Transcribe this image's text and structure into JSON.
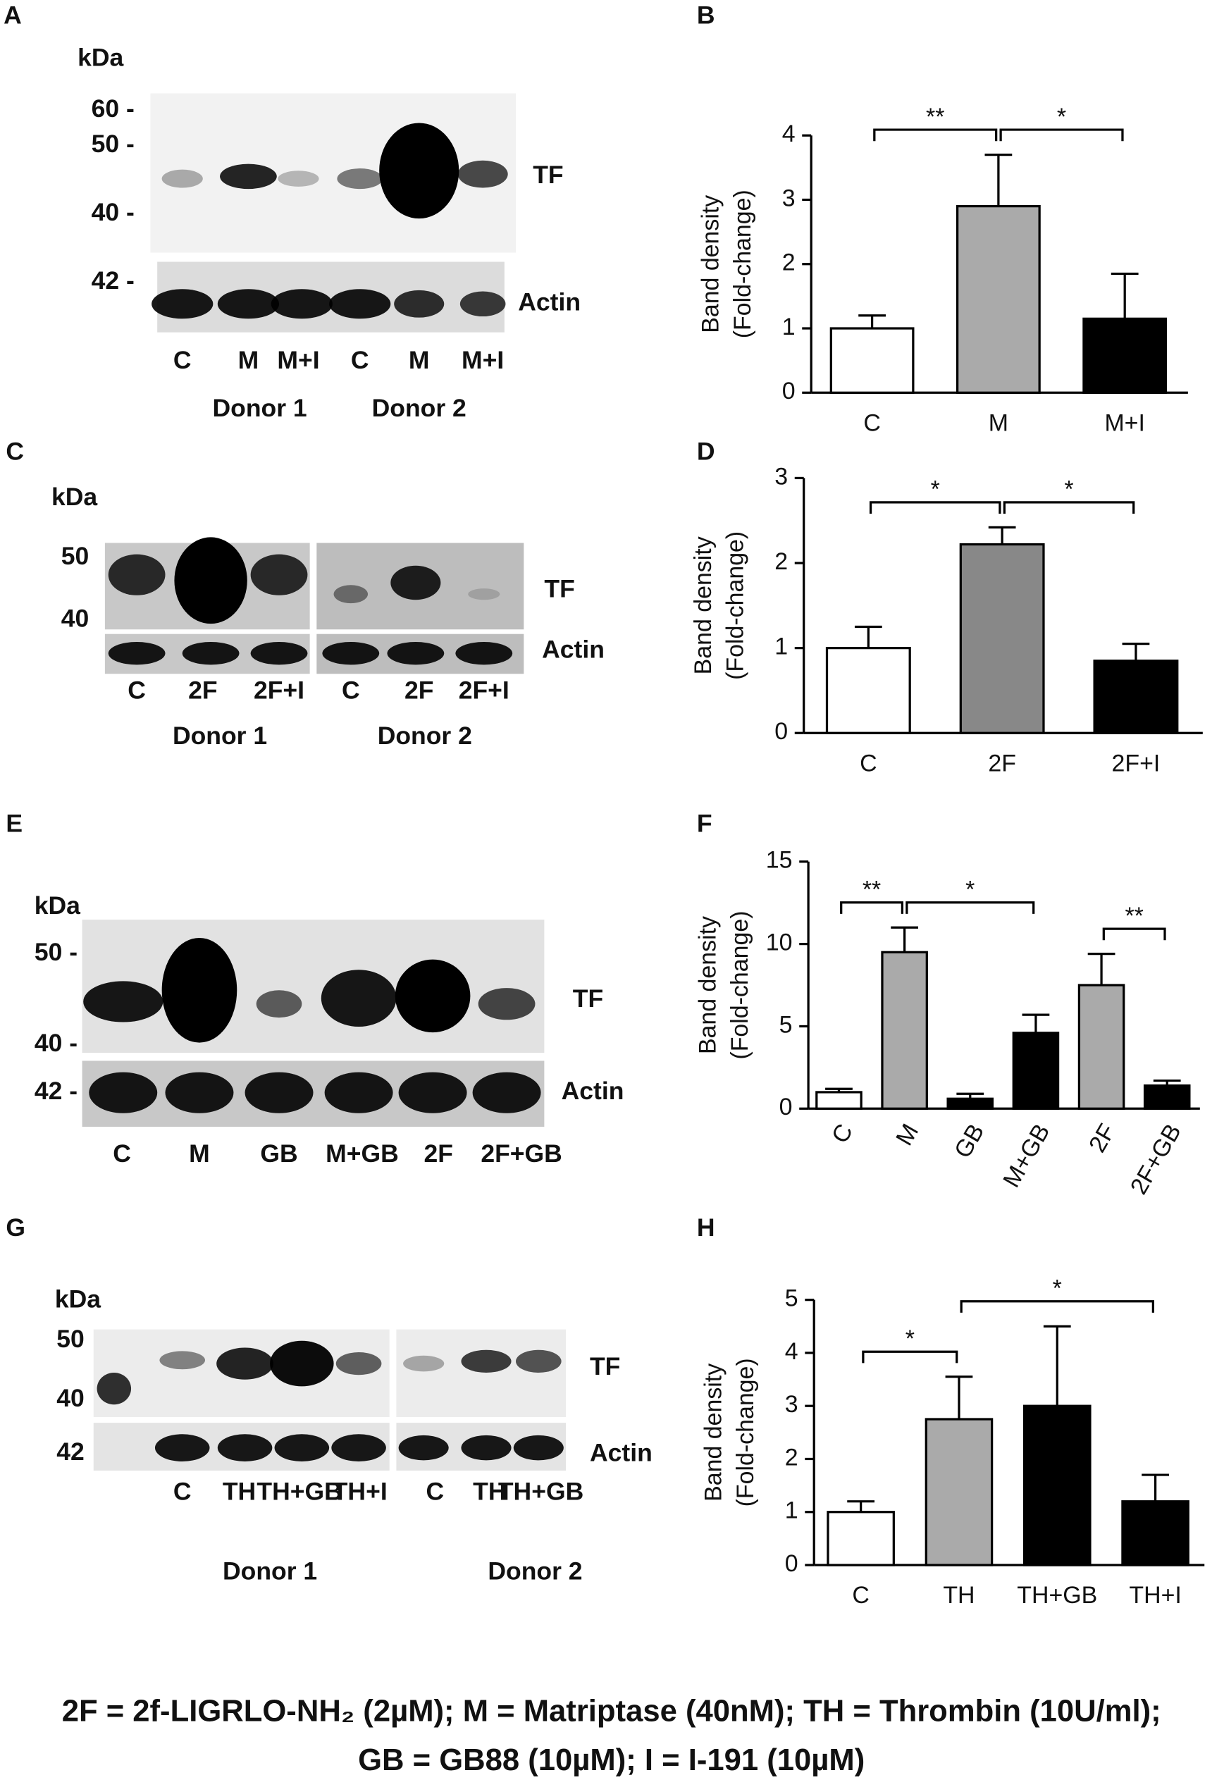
{
  "panel_labels": [
    "A",
    "B",
    "C",
    "D",
    "E",
    "F",
    "G",
    "H"
  ],
  "blots": [
    {
      "kda": "kDa",
      "markers": [
        "60 -",
        "50 -",
        "40 -",
        "42 -"
      ],
      "tf": "TF",
      "actin": "Actin",
      "lanes": [
        "C",
        "M",
        "M+I",
        "C",
        "M",
        "M+I"
      ],
      "donors": [
        "Donor 1",
        "Donor 2"
      ]
    },
    {
      "kda": "kDa",
      "markers": [
        "50",
        "40"
      ],
      "tf": "TF",
      "actin": "Actin",
      "lanes": [
        "C",
        "2F",
        "2F+I",
        "C",
        "2F",
        "2F+I"
      ],
      "donors": [
        "Donor 1",
        "Donor 2"
      ]
    },
    {
      "kda": "kDa",
      "markers": [
        "50 -",
        "40 -",
        "42 -"
      ],
      "tf": "TF",
      "actin": "Actin",
      "lanes": [
        "C",
        "M",
        "GB",
        "M+GB",
        "2F",
        "2F+GB"
      ]
    },
    {
      "kda": "kDa",
      "markers": [
        "50",
        "40",
        "42"
      ],
      "tf": "TF",
      "actin": "Actin",
      "lanes": [
        "C",
        "TH",
        "TH+GB",
        "TH+I",
        "C",
        "TH",
        "TH+GB"
      ],
      "donors": [
        "Donor 1",
        "Donor 2"
      ]
    }
  ],
  "chart_data": [
    {
      "type": "bar",
      "ylabel": [
        "Band density",
        "(Fold-change)"
      ],
      "categories": [
        "C",
        "M",
        "M+I"
      ],
      "values": [
        1,
        2.9,
        1.15
      ],
      "errors": [
        0.2,
        0.8,
        0.7
      ],
      "colors": [
        "#ffffff",
        "#aaaaaa",
        "#000000"
      ],
      "ylim": [
        0,
        4
      ],
      "yticks": [
        0,
        1,
        2,
        3,
        4
      ],
      "significance": [
        {
          "between": [
            "C",
            "M"
          ],
          "label": "**"
        },
        {
          "between": [
            "M",
            "M+I"
          ],
          "label": "*"
        }
      ]
    },
    {
      "type": "bar",
      "ylabel": [
        "Band density",
        "(Fold-change)"
      ],
      "categories": [
        "C",
        "2F",
        "2F+I"
      ],
      "values": [
        1,
        2.22,
        0.85
      ],
      "errors": [
        0.25,
        0.2,
        0.2
      ],
      "colors": [
        "#ffffff",
        "#888888",
        "#000000"
      ],
      "ylim": [
        0,
        3
      ],
      "yticks": [
        0,
        1,
        2,
        3
      ],
      "significance": [
        {
          "between": [
            "C",
            "2F"
          ],
          "label": "*"
        },
        {
          "between": [
            "2F",
            "2F+I"
          ],
          "label": "*"
        }
      ]
    },
    {
      "type": "bar",
      "ylabel": [
        "Band density",
        "(Fold-change)"
      ],
      "categories": [
        "C",
        "M",
        "GB",
        "M+GB",
        "2F",
        "2F+GB"
      ],
      "values": [
        1,
        9.5,
        0.6,
        4.6,
        7.5,
        1.4
      ],
      "errors": [
        0.2,
        1.5,
        0.3,
        1.1,
        1.9,
        0.3
      ],
      "colors": [
        "#ffffff",
        "#aaaaaa",
        "#000000",
        "#000000",
        "#aaaaaa",
        "#000000"
      ],
      "ylim": [
        0,
        15
      ],
      "yticks": [
        0,
        5,
        10,
        15
      ],
      "significance": [
        {
          "between": [
            "C",
            "M"
          ],
          "label": "**"
        },
        {
          "between": [
            "M",
            "M+GB"
          ],
          "label": "*"
        },
        {
          "between": [
            "2F",
            "2F+GB"
          ],
          "label": "**"
        }
      ]
    },
    {
      "type": "bar",
      "ylabel": [
        "Band density",
        "(Fold-change)"
      ],
      "categories": [
        "C",
        "TH",
        "TH+GB",
        "TH+I"
      ],
      "values": [
        1,
        2.75,
        3.0,
        1.2
      ],
      "errors": [
        0.2,
        0.8,
        1.5,
        0.5
      ],
      "colors": [
        "#ffffff",
        "#aaaaaa",
        "#000000",
        "#000000"
      ],
      "ylim": [
        0,
        5
      ],
      "yticks": [
        0,
        1,
        2,
        3,
        4,
        5
      ],
      "significance": [
        {
          "between": [
            "C",
            "TH"
          ],
          "label": "*"
        },
        {
          "between": [
            "TH",
            "TH+I"
          ],
          "label": "*"
        }
      ]
    }
  ],
  "footnote": [
    "2F = 2f-LIGRLO-NH₂ (2µM); M = Matriptase (40nM); TH = Thrombin (10U/ml);",
    "GB = GB88 (10µM); I = I-191 (10µM)"
  ]
}
